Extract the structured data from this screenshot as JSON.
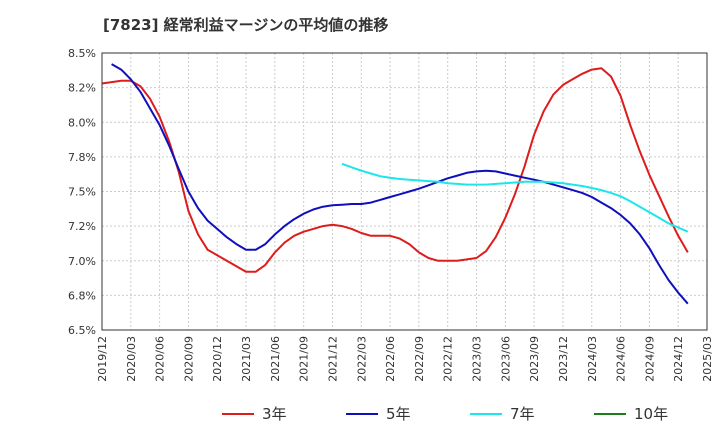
{
  "chart_data": {
    "type": "line",
    "title": "[7823]  経常利益マージンの平均値の推移",
    "xlabel": "",
    "ylabel": "",
    "ylim": [
      6.5,
      8.5
    ],
    "y_ticks": [
      "6.5%",
      "6.8%",
      "7.0%",
      "7.2%",
      "7.5%",
      "7.8%",
      "8.0%",
      "8.2%",
      "8.5%"
    ],
    "x_ticks": [
      "2019/12",
      "2020/03",
      "2020/06",
      "2020/09",
      "2020/12",
      "2021/03",
      "2021/06",
      "2021/09",
      "2021/12",
      "2022/03",
      "2022/06",
      "2022/09",
      "2022/12",
      "2023/03",
      "2023/06",
      "2023/09",
      "2023/12",
      "2024/03",
      "2024/06",
      "2024/09",
      "2024/12",
      "2025/03"
    ],
    "grid": true,
    "legend_position": "bottom",
    "series": [
      {
        "name": "3年",
        "color": "#dd1c1c",
        "points": [
          [
            "2019/12",
            8.28
          ],
          [
            "2020/01",
            8.29
          ],
          [
            "2020/02",
            8.3
          ],
          [
            "2020/03",
            8.3
          ],
          [
            "2020/04",
            8.26
          ],
          [
            "2020/05",
            8.17
          ],
          [
            "2020/06",
            8.04
          ],
          [
            "2020/07",
            7.86
          ],
          [
            "2020/08",
            7.64
          ],
          [
            "2020/09",
            7.36
          ],
          [
            "2020/10",
            7.19
          ],
          [
            "2020/11",
            7.08
          ],
          [
            "2020/12",
            7.04
          ],
          [
            "2021/01",
            7.0
          ],
          [
            "2021/02",
            6.96
          ],
          [
            "2021/03",
            6.92
          ],
          [
            "2021/04",
            6.92
          ],
          [
            "2021/05",
            6.97
          ],
          [
            "2021/06",
            7.06
          ],
          [
            "2021/07",
            7.13
          ],
          [
            "2021/08",
            7.18
          ],
          [
            "2021/09",
            7.21
          ],
          [
            "2021/10",
            7.23
          ],
          [
            "2021/11",
            7.25
          ],
          [
            "2021/12",
            7.26
          ],
          [
            "2022/01",
            7.25
          ],
          [
            "2022/02",
            7.23
          ],
          [
            "2022/03",
            7.2
          ],
          [
            "2022/04",
            7.18
          ],
          [
            "2022/05",
            7.18
          ],
          [
            "2022/06",
            7.18
          ],
          [
            "2022/07",
            7.16
          ],
          [
            "2022/08",
            7.12
          ],
          [
            "2022/09",
            7.06
          ],
          [
            "2022/10",
            7.02
          ],
          [
            "2022/11",
            7.0
          ],
          [
            "2022/12",
            7.0
          ],
          [
            "2023/01",
            7.0
          ],
          [
            "2023/02",
            7.01
          ],
          [
            "2023/03",
            7.02
          ],
          [
            "2023/04",
            7.07
          ],
          [
            "2023/05",
            7.17
          ],
          [
            "2023/06",
            7.31
          ],
          [
            "2023/07",
            7.48
          ],
          [
            "2023/08",
            7.68
          ],
          [
            "2023/09",
            7.91
          ],
          [
            "2023/10",
            8.08
          ],
          [
            "2023/11",
            8.2
          ],
          [
            "2023/12",
            8.27
          ],
          [
            "2024/01",
            8.31
          ],
          [
            "2024/02",
            8.35
          ],
          [
            "2024/03",
            8.38
          ],
          [
            "2024/04",
            8.39
          ],
          [
            "2024/05",
            8.33
          ],
          [
            "2024/06",
            8.19
          ],
          [
            "2024/07",
            7.98
          ],
          [
            "2024/08",
            7.79
          ],
          [
            "2024/09",
            7.62
          ],
          [
            "2024/10",
            7.47
          ],
          [
            "2024/11",
            7.32
          ],
          [
            "2024/12",
            7.18
          ],
          [
            "2025/01",
            7.06
          ]
        ]
      },
      {
        "name": "5年",
        "color": "#0f0fbe",
        "points": [
          [
            "2020/01",
            8.42
          ],
          [
            "2020/02",
            8.38
          ],
          [
            "2020/03",
            8.31
          ],
          [
            "2020/04",
            8.22
          ],
          [
            "2020/05",
            8.1
          ],
          [
            "2020/06",
            7.98
          ],
          [
            "2020/07",
            7.83
          ],
          [
            "2020/08",
            7.66
          ],
          [
            "2020/09",
            7.5
          ],
          [
            "2020/10",
            7.38
          ],
          [
            "2020/11",
            7.29
          ],
          [
            "2020/12",
            7.23
          ],
          [
            "2021/01",
            7.17
          ],
          [
            "2021/02",
            7.12
          ],
          [
            "2021/03",
            7.08
          ],
          [
            "2021/04",
            7.08
          ],
          [
            "2021/05",
            7.12
          ],
          [
            "2021/06",
            7.19
          ],
          [
            "2021/07",
            7.25
          ],
          [
            "2021/08",
            7.3
          ],
          [
            "2021/09",
            7.34
          ],
          [
            "2021/10",
            7.37
          ],
          [
            "2021/11",
            7.39
          ],
          [
            "2021/12",
            7.4
          ],
          [
            "2022/01",
            7.405
          ],
          [
            "2022/02",
            7.41
          ],
          [
            "2022/03",
            7.41
          ],
          [
            "2022/04",
            7.42
          ],
          [
            "2022/05",
            7.44
          ],
          [
            "2022/06",
            7.46
          ],
          [
            "2022/07",
            7.48
          ],
          [
            "2022/08",
            7.5
          ],
          [
            "2022/09",
            7.52
          ],
          [
            "2022/10",
            7.545
          ],
          [
            "2022/11",
            7.57
          ],
          [
            "2022/12",
            7.595
          ],
          [
            "2023/01",
            7.615
          ],
          [
            "2023/02",
            7.635
          ],
          [
            "2023/03",
            7.645
          ],
          [
            "2023/04",
            7.65
          ],
          [
            "2023/05",
            7.645
          ],
          [
            "2023/06",
            7.63
          ],
          [
            "2023/07",
            7.615
          ],
          [
            "2023/08",
            7.6
          ],
          [
            "2023/09",
            7.585
          ],
          [
            "2023/10",
            7.57
          ],
          [
            "2023/11",
            7.55
          ],
          [
            "2023/12",
            7.53
          ],
          [
            "2024/01",
            7.51
          ],
          [
            "2024/02",
            7.49
          ],
          [
            "2024/03",
            7.46
          ],
          [
            "2024/04",
            7.42
          ],
          [
            "2024/05",
            7.38
          ],
          [
            "2024/06",
            7.33
          ],
          [
            "2024/07",
            7.27
          ],
          [
            "2024/08",
            7.19
          ],
          [
            "2024/09",
            7.09
          ],
          [
            "2024/10",
            6.97
          ],
          [
            "2024/11",
            6.86
          ],
          [
            "2024/12",
            6.77
          ],
          [
            "2025/01",
            6.69
          ]
        ]
      },
      {
        "name": "7年",
        "color": "#1de6ea",
        "points": [
          [
            "2022/01",
            7.7
          ],
          [
            "2022/02",
            7.675
          ],
          [
            "2022/03",
            7.65
          ],
          [
            "2022/04",
            7.63
          ],
          [
            "2022/05",
            7.61
          ],
          [
            "2022/06",
            7.6
          ],
          [
            "2022/07",
            7.59
          ],
          [
            "2022/08",
            7.585
          ],
          [
            "2022/09",
            7.58
          ],
          [
            "2022/10",
            7.575
          ],
          [
            "2022/11",
            7.57
          ],
          [
            "2022/12",
            7.56
          ],
          [
            "2023/01",
            7.555
          ],
          [
            "2023/02",
            7.55
          ],
          [
            "2023/03",
            7.55
          ],
          [
            "2023/04",
            7.55
          ],
          [
            "2023/05",
            7.555
          ],
          [
            "2023/06",
            7.56
          ],
          [
            "2023/07",
            7.565
          ],
          [
            "2023/08",
            7.57
          ],
          [
            "2023/09",
            7.57
          ],
          [
            "2023/10",
            7.57
          ],
          [
            "2023/11",
            7.565
          ],
          [
            "2023/12",
            7.56
          ],
          [
            "2024/01",
            7.55
          ],
          [
            "2024/02",
            7.54
          ],
          [
            "2024/03",
            7.525
          ],
          [
            "2024/04",
            7.51
          ],
          [
            "2024/05",
            7.49
          ],
          [
            "2024/06",
            7.465
          ],
          [
            "2024/07",
            7.43
          ],
          [
            "2024/08",
            7.39
          ],
          [
            "2024/09",
            7.35
          ],
          [
            "2024/10",
            7.31
          ],
          [
            "2024/11",
            7.27
          ],
          [
            "2024/12",
            7.24
          ],
          [
            "2025/01",
            7.21
          ]
        ]
      },
      {
        "name": "10年",
        "color": "#1d7d1d",
        "points": []
      }
    ]
  }
}
